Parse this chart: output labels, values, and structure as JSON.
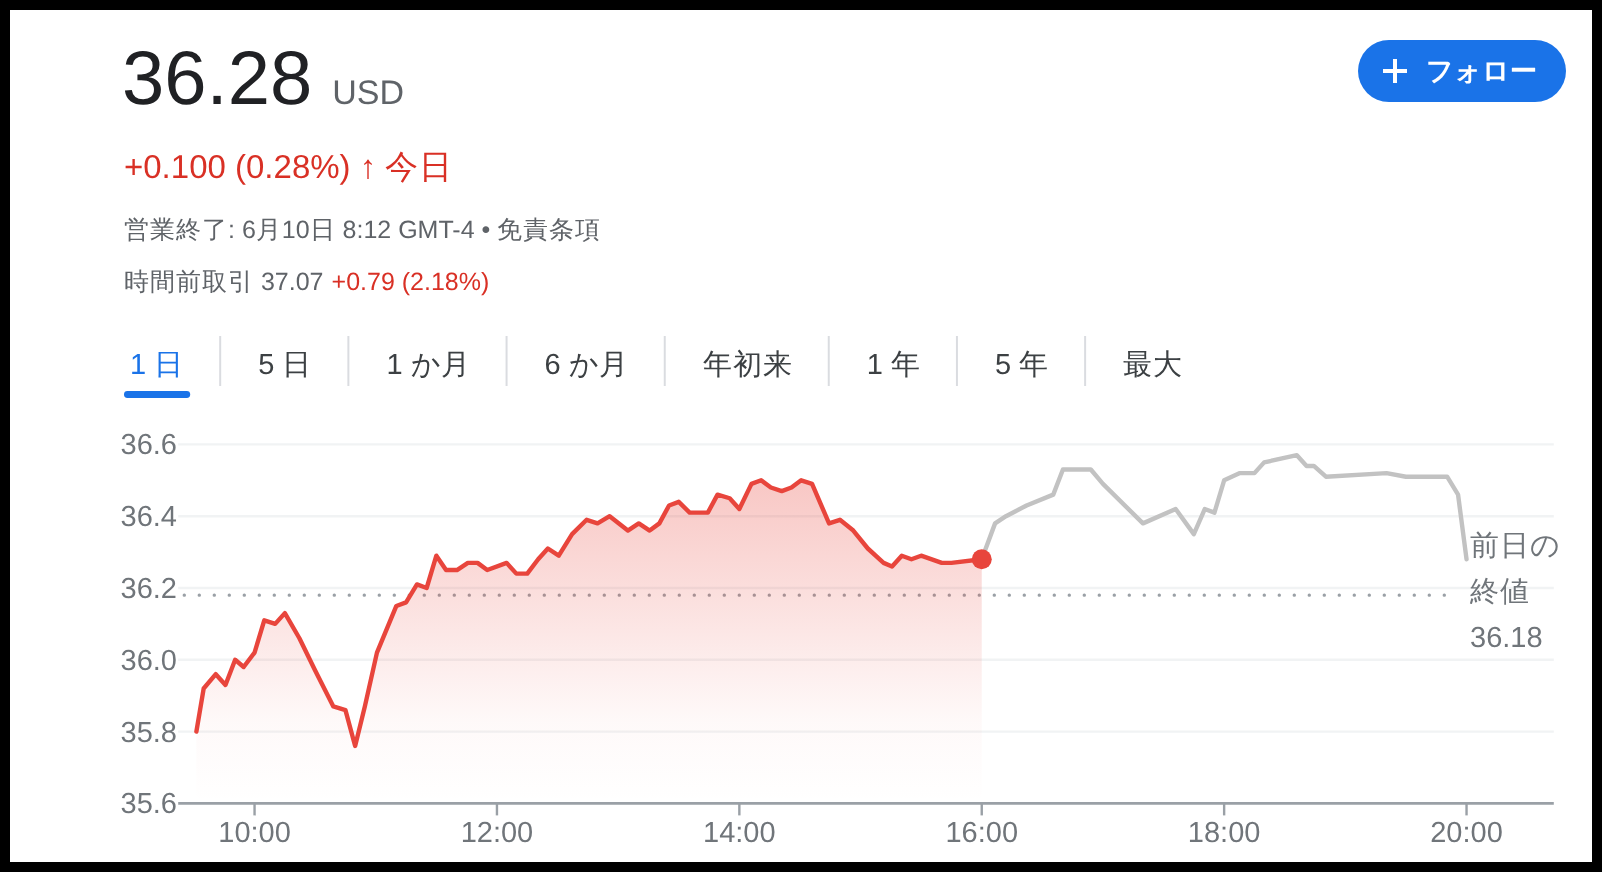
{
  "chart_data": {
    "type": "line",
    "title": "36.28",
    "subtitle": "+0.100 (0.28%) ↑ 今日",
    "annotations": [
      "USD",
      "営業終了: 6月10日 8:12 GMT-4 • 免責条項",
      "時間前取引 37.07",
      "+0.79 (2.18%)",
      "1 日",
      "5 日",
      "1 か月",
      "6 か月",
      "年初来",
      "1 年",
      "5 年",
      "最大",
      "フォロー"
    ],
    "series": [
      {
        "type": "area",
        "color": "#e8453c",
        "x": [
          9.52,
          9.58,
          9.68,
          9.76,
          9.84,
          9.91,
          10.0,
          10.08,
          10.17,
          10.25,
          10.37,
          10.5,
          10.65,
          10.75,
          10.83,
          10.91,
          11.01,
          11.17,
          11.25,
          11.34,
          11.42,
          11.5,
          11.58,
          11.67,
          11.76,
          11.84,
          11.92,
          12.08,
          12.16,
          12.25,
          12.34,
          12.42,
          12.51,
          12.62,
          12.74,
          12.83,
          12.93,
          13.08,
          13.17,
          13.26,
          13.34,
          13.42,
          13.5,
          13.59,
          13.74,
          13.82,
          13.92,
          14.0,
          14.1,
          14.18,
          14.26,
          14.35,
          14.43,
          14.51,
          14.6,
          14.74,
          14.83,
          14.94,
          15.06,
          15.19,
          15.26,
          15.34,
          15.42,
          15.5,
          15.67,
          15.75,
          16.0
        ],
        "values": [
          35.8,
          35.92,
          35.96,
          35.93,
          36.0,
          35.98,
          36.02,
          36.11,
          36.1,
          36.13,
          36.06,
          35.97,
          35.87,
          35.86,
          35.76,
          35.87,
          36.02,
          36.15,
          36.16,
          36.21,
          36.2,
          36.29,
          36.25,
          36.25,
          36.27,
          36.27,
          36.25,
          36.27,
          36.24,
          36.24,
          36.28,
          36.31,
          36.29,
          36.35,
          36.39,
          36.38,
          36.4,
          36.36,
          36.38,
          36.36,
          36.38,
          36.43,
          36.44,
          36.41,
          36.41,
          36.46,
          36.45,
          36.42,
          36.49,
          36.5,
          36.48,
          36.47,
          36.48,
          36.5,
          36.49,
          36.38,
          36.39,
          36.36,
          36.31,
          36.27,
          36.26,
          36.29,
          36.28,
          36.29,
          36.27,
          36.27,
          36.28
        ]
      },
      {
        "type": "line",
        "color": "#c2c2c2",
        "x": [
          16.0,
          16.11,
          16.2,
          16.37,
          16.59,
          16.67,
          16.9,
          17.0,
          17.33,
          17.6,
          17.75,
          17.84,
          17.92,
          18.0,
          18.13,
          18.25,
          18.33,
          18.6,
          18.68,
          18.74,
          18.84,
          19.34,
          19.5,
          19.84,
          19.93,
          20.0
        ],
        "values": [
          36.28,
          36.38,
          36.4,
          36.43,
          36.46,
          36.53,
          36.53,
          36.49,
          36.38,
          36.42,
          36.35,
          36.42,
          36.41,
          36.5,
          36.52,
          36.52,
          36.55,
          36.57,
          36.54,
          36.54,
          36.51,
          36.52,
          36.51,
          36.51,
          36.46,
          36.28
        ]
      },
      {
        "type": "scatter",
        "color": "#e8453c",
        "x": [
          16.0
        ],
        "values": [
          36.28
        ]
      }
    ],
    "xlim": [
      9.37,
      20.72
    ],
    "ylim": [
      35.6,
      36.6
    ],
    "xticks": [
      {
        "value": 10,
        "label": "10:00"
      },
      {
        "value": 12,
        "label": "12:00"
      },
      {
        "value": 14,
        "label": "14:00"
      },
      {
        "value": 16,
        "label": "16:00"
      },
      {
        "value": 18,
        "label": "18:00"
      },
      {
        "value": 20,
        "label": "20:00"
      }
    ],
    "yticks": [
      35.6,
      35.8,
      {
        "value": 36,
        "label": "36.0"
      },
      36.2,
      36.4,
      36.6
    ],
    "grid": "y",
    "ref_lines": [
      {
        "axis": "y",
        "value": 36.18,
        "label": "前日の終値 36.18",
        "color": "#9aa0a6",
        "line_style": "dotted"
      }
    ]
  }
}
